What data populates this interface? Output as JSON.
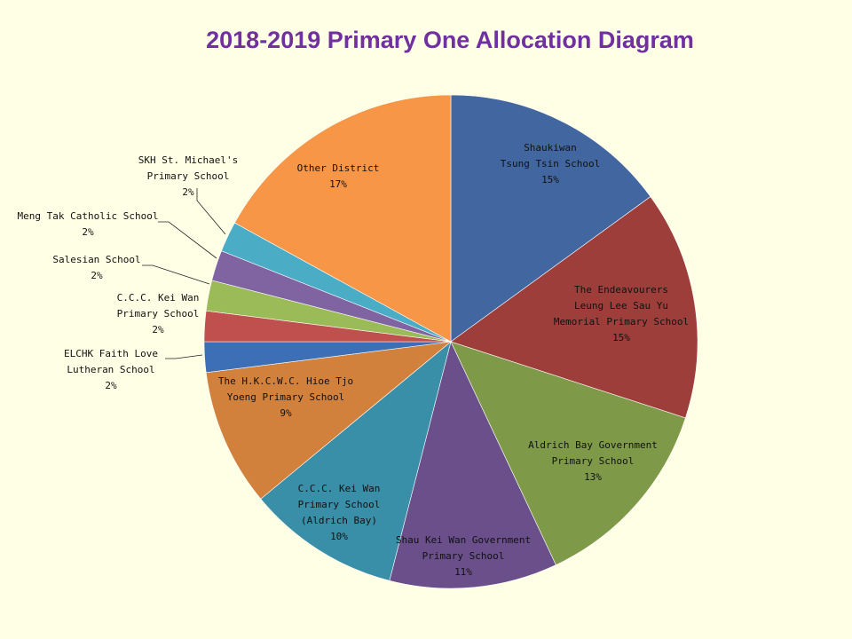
{
  "chart_data": {
    "type": "pie",
    "title": "2018-2019 Primary One Allocation Diagram",
    "start": "12 o'clock",
    "direction": "clockwise",
    "slices": [
      {
        "lines": [
          "Shaukiwan",
          "Tsung Tsin School"
        ],
        "pct_label": "15%",
        "value": 15,
        "color": "#4267a0"
      },
      {
        "lines": [
          "The Endeavourers",
          "Leung Lee Sau Yu",
          "Memorial Primary School"
        ],
        "pct_label": "15%",
        "value": 15,
        "color": "#9e3e3b"
      },
      {
        "lines": [
          "Aldrich Bay Government",
          "Primary School"
        ],
        "pct_label": "13%",
        "value": 13,
        "color": "#7e9a49"
      },
      {
        "lines": [
          "Shau Kei Wan Government",
          "Primary School"
        ],
        "pct_label": "11%",
        "value": 11,
        "color": "#6a4f8a"
      },
      {
        "lines": [
          "C.C.C. Kei Wan",
          "Primary School",
          "(Aldrich Bay)"
        ],
        "pct_label": "10%",
        "value": 10,
        "color": "#3a8fa8"
      },
      {
        "lines": [
          "The H.K.C.W.C. Hioe Tjo",
          "Yoeng Primary School"
        ],
        "pct_label": "9%",
        "value": 9,
        "color": "#d2813d"
      },
      {
        "lines": [
          "ELCHK Faith Love",
          "Lutheran School"
        ],
        "pct_label": "2%",
        "value": 2,
        "color": "#3c6fb5"
      },
      {
        "lines": [
          "C.C.C. Kei Wan",
          "Primary School"
        ],
        "pct_label": "2%",
        "value": 2,
        "color": "#c0504d"
      },
      {
        "lines": [
          "Salesian School"
        ],
        "pct_label": "2%",
        "value": 2,
        "color": "#9bbb59"
      },
      {
        "lines": [
          "Meng Tak Catholic School"
        ],
        "pct_label": "2%",
        "value": 2,
        "color": "#8064a2"
      },
      {
        "lines": [
          "SKH St. Michael's",
          "Primary School"
        ],
        "pct_label": "2%",
        "value": 2,
        "color": "#4bacc6"
      },
      {
        "lines": [
          "Other District"
        ],
        "pct_label": "17%",
        "value": 17,
        "color": "#f79646"
      }
    ]
  }
}
